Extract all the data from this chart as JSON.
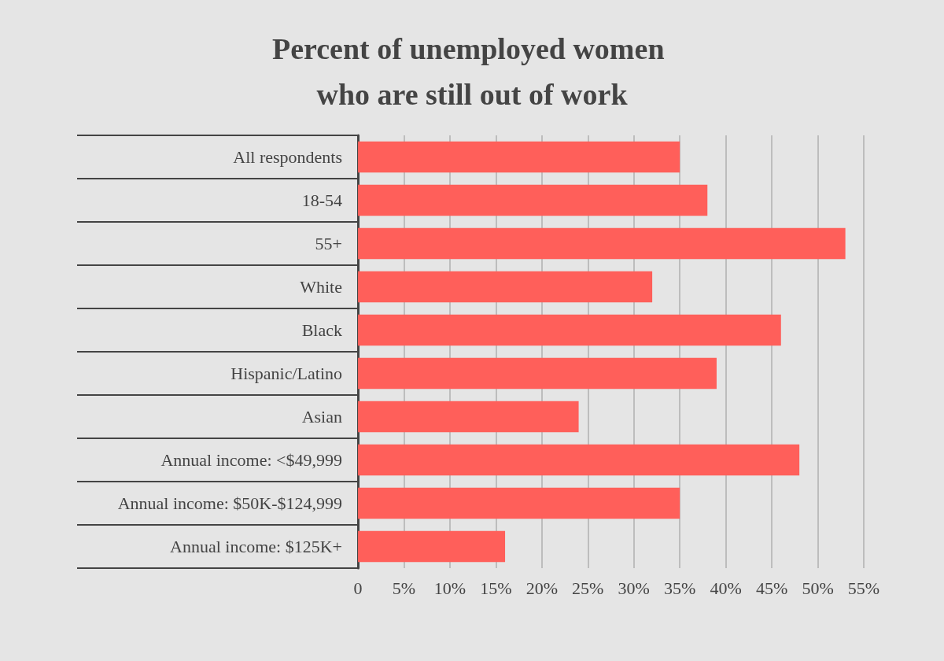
{
  "chart_data": {
    "type": "bar",
    "orientation": "horizontal",
    "title": "Percent of unemployed women who are still out of work",
    "categories": [
      "All respondents",
      "18-54",
      "55+",
      "White",
      "Black",
      "Hispanic/Latino",
      "Asian",
      "Annual income: <$49,999",
      "Annual income: $50K-$124,999",
      "Annual income: $125K+"
    ],
    "values": [
      35,
      38,
      53,
      32,
      46,
      39,
      24,
      48,
      35,
      16
    ],
    "color": "#ff5f5a",
    "xlim": [
      0,
      55
    ],
    "xticks": [
      0,
      {
        "value": 5,
        "label": "5%"
      },
      {
        "value": 10,
        "label": "10%"
      },
      {
        "value": 15,
        "label": "15%"
      },
      {
        "value": 20,
        "label": "20%"
      },
      {
        "value": 25,
        "label": "25%"
      },
      {
        "value": 30,
        "label": "30%"
      },
      {
        "value": 35,
        "label": "35%"
      },
      {
        "value": 40,
        "label": "40%"
      },
      {
        "value": 45,
        "label": "45%"
      },
      {
        "value": 50,
        "label": "50%"
      },
      {
        "value": 55,
        "label": "55%"
      }
    ],
    "grid": "x"
  }
}
